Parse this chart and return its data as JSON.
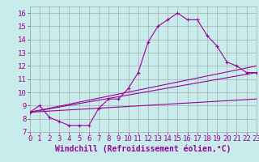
{
  "xlabel": "Windchill (Refroidissement éolien,°C)",
  "background_color": "#c8ecec",
  "line_color": "#990099",
  "xlim": [
    0,
    23
  ],
  "ylim": [
    7,
    16.5
  ],
  "xticks": [
    0,
    1,
    2,
    3,
    4,
    5,
    6,
    7,
    8,
    9,
    10,
    11,
    12,
    13,
    14,
    15,
    16,
    17,
    18,
    19,
    20,
    21,
    22,
    23
  ],
  "yticks": [
    7,
    8,
    9,
    10,
    11,
    12,
    13,
    14,
    15,
    16
  ],
  "series_main": {
    "x": [
      0,
      1,
      2,
      3,
      4,
      5,
      6,
      7,
      8,
      9,
      10,
      11,
      12,
      13,
      14,
      15,
      16,
      17,
      18,
      19,
      20,
      21,
      22,
      23
    ],
    "y": [
      8.5,
      9.0,
      8.1,
      7.8,
      7.5,
      7.5,
      7.5,
      8.8,
      9.5,
      9.5,
      10.3,
      11.5,
      13.8,
      15.0,
      15.5,
      16.0,
      15.5,
      15.5,
      14.3,
      13.5,
      12.3,
      12.0,
      11.5,
      11.5
    ]
  },
  "series_lines": [
    {
      "x": [
        0,
        23
      ],
      "y": [
        8.5,
        9.5
      ]
    },
    {
      "x": [
        0,
        23
      ],
      "y": [
        8.5,
        11.5
      ]
    },
    {
      "x": [
        0,
        23
      ],
      "y": [
        8.5,
        12.0
      ]
    }
  ],
  "grid_color": "#aaaaaa",
  "font_color": "#990099",
  "font_size": 6.5,
  "xlabel_fontsize": 7
}
